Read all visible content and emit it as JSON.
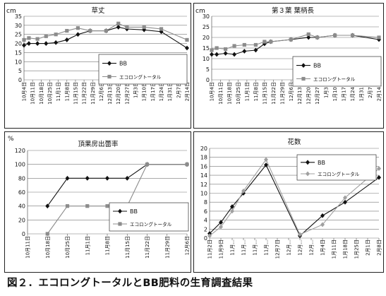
{
  "caption": "図２．エコロングトータルとBB肥料の生育調査結果",
  "legend_labels": {
    "bb": "BB",
    "eco": "エコロングトータル"
  },
  "colors": {
    "bb": "#111111",
    "eco": "#8c8c8c",
    "eco_pie": "#a0a0a0"
  },
  "chart_data": [
    {
      "type": "line",
      "title": "草丈",
      "ylabel": "cm",
      "ylim": [
        0,
        35
      ],
      "yticks": [
        0,
        5,
        10,
        15,
        20,
        25,
        30,
        35
      ],
      "grid": true,
      "legend": "center-right",
      "x": [
        "10月4日",
        "10月11日",
        "10月18日",
        "10月25日",
        "11月1日",
        "11月8日",
        "11月15日",
        "11月22日",
        "11月29日",
        "12月6日",
        "12月13日",
        "12月20日",
        "12月27日",
        "1月3日",
        "1月10日",
        "1月17日",
        "1月24日",
        "1月31日",
        "2月7日",
        "2月14日"
      ],
      "series": [
        {
          "name": "BB",
          "marker": "diamond",
          "points": [
            [
              "10月4日",
              19
            ],
            [
              "10月8日",
              20
            ],
            [
              "10月15日",
              20
            ],
            [
              "10月22日",
              20
            ],
            [
              "10月30日",
              20.5
            ],
            [
              "11月8日",
              22
            ],
            [
              "11月17日",
              25
            ],
            [
              "11月27日",
              27
            ],
            [
              "12月10日",
              27
            ],
            [
              "12月20日",
              29
            ],
            [
              "12月27日",
              28
            ],
            [
              "1月10日",
              27.5
            ],
            [
              "1月24日",
              26.5
            ],
            [
              "2月14日",
              17.5
            ]
          ]
        },
        {
          "name": "エコロングトータル",
          "marker": "square",
          "points": [
            [
              "10月4日",
              22
            ],
            [
              "10月8日",
              23
            ],
            [
              "10月15日",
              22.5
            ],
            [
              "10月22日",
              24
            ],
            [
              "10月30日",
              25
            ],
            [
              "11月8日",
              27
            ],
            [
              "11月17日",
              28.5
            ],
            [
              "11月27日",
              27
            ],
            [
              "12月10日",
              27
            ],
            [
              "12月20日",
              31
            ],
            [
              "12月27日",
              29
            ],
            [
              "1月10日",
              29
            ],
            [
              "1月24日",
              28
            ],
            [
              "2月14日",
              22
            ]
          ]
        }
      ]
    },
    {
      "type": "line",
      "title": "第３葉 葉柄長",
      "ylabel": "cm",
      "ylim": [
        0,
        30
      ],
      "yticks": [
        0,
        5,
        10,
        15,
        20,
        25,
        30
      ],
      "grid": true,
      "legend": "bottom-right",
      "x": [
        "10月4日",
        "10月11日",
        "10月18日",
        "10月25日",
        "11月1日",
        "11月8日",
        "11月15日",
        "11月22日",
        "11月29日",
        "12月6日",
        "12月13日",
        "12月20日",
        "12月27日",
        "1月3日",
        "1月10日",
        "1月17日",
        "1月24日",
        "1月31日",
        "2月7日",
        "2月14日"
      ],
      "series": [
        {
          "name": "BB",
          "marker": "diamond",
          "points": [
            [
              "10月4日",
              12
            ],
            [
              "10月8日",
              12
            ],
            [
              "10月15日",
              12.5
            ],
            [
              "10月22日",
              12
            ],
            [
              "10月30日",
              13.5
            ],
            [
              "11月8日",
              14
            ],
            [
              "11月15日",
              17
            ],
            [
              "11月20日",
              18
            ],
            [
              "12月6日",
              19
            ],
            [
              "12月20日",
              20
            ],
            [
              "12月27日",
              20
            ],
            [
              "1月10日",
              21
            ],
            [
              "1月24日",
              21
            ],
            [
              "2月14日",
              19
            ]
          ]
        },
        {
          "name": "エコロングトータル",
          "marker": "square",
          "points": [
            [
              "10月4日",
              14
            ],
            [
              "10月8日",
              15
            ],
            [
              "10月15日",
              14.5
            ],
            [
              "10月22日",
              16
            ],
            [
              "10月30日",
              16.5
            ],
            [
              "11月8日",
              16.5
            ],
            [
              "11月15日",
              18
            ],
            [
              "11月20日",
              18
            ],
            [
              "12月6日",
              19
            ],
            [
              "12月20日",
              21.5
            ],
            [
              "12月27日",
              20
            ],
            [
              "1月10日",
              21
            ],
            [
              "1月24日",
              21
            ],
            [
              "2月14日",
              20
            ]
          ]
        }
      ]
    },
    {
      "type": "line",
      "title": "頂果房出蕾率",
      "ylabel": "%",
      "ylim": [
        0,
        120
      ],
      "yticks": [
        0,
        20,
        40,
        60,
        80,
        100,
        120
      ],
      "grid": true,
      "legend": "center-right",
      "x": [
        "10月11日",
        "10月18日",
        "10月25日",
        "11月1日",
        "11月8日",
        "11月15日",
        "11月22日",
        "11月29日",
        "12月6日"
      ],
      "series": [
        {
          "name": "BB",
          "marker": "diamond",
          "points": [
            [
              "10月18日",
              40
            ],
            [
              "10月25日",
              80
            ],
            [
              "11月1日",
              80
            ],
            [
              "11月8日",
              80
            ],
            [
              "11月15日",
              80
            ],
            [
              "11月22日",
              100
            ],
            [
              "12月6日",
              100
            ]
          ]
        },
        {
          "name": "エコロングトータル",
          "marker": "square",
          "points": [
            [
              "10月18日",
              0
            ],
            [
              "10月25日",
              40
            ],
            [
              "11月1日",
              40
            ],
            [
              "11月8日",
              40
            ],
            [
              "11月15日",
              40
            ],
            [
              "11月22日",
              100
            ],
            [
              "12月6日",
              100
            ]
          ]
        }
      ]
    },
    {
      "type": "line",
      "title": "花数",
      "ylim": [
        0,
        20
      ],
      "yticks": [
        0,
        2,
        4,
        6,
        8,
        10,
        12,
        14,
        16,
        18,
        20
      ],
      "grid": true,
      "legend": "top-right",
      "x": [
        "11月2日",
        "11月9日",
        "11月...",
        "11月...",
        "11月...",
        "11月...",
        "12月7日",
        "12月...",
        "12月...",
        "12月...",
        "1月4日",
        "1月11日",
        "1月18日",
        "1月25日",
        "2月1日",
        "2月8日"
      ],
      "series": [
        {
          "name": "BB",
          "marker": "diamond",
          "points": [
            [
              0,
              1
            ],
            [
              1,
              3.5
            ],
            [
              2,
              7
            ],
            [
              3,
              10
            ],
            [
              5,
              16.3
            ],
            [
              8,
              0.5
            ],
            [
              10,
              5
            ],
            [
              12,
              8
            ],
            [
              15,
              13.5
            ]
          ]
        },
        {
          "name": "エコロングトータル",
          "marker": "diamond",
          "points": [
            [
              0,
              0.5
            ],
            [
              1,
              2.5
            ],
            [
              2,
              6
            ],
            [
              3,
              10.5
            ],
            [
              5,
              17.5
            ],
            [
              8,
              0.8
            ],
            [
              10,
              3
            ],
            [
              12,
              9
            ],
            [
              15,
              15.5
            ]
          ]
        }
      ]
    }
  ]
}
